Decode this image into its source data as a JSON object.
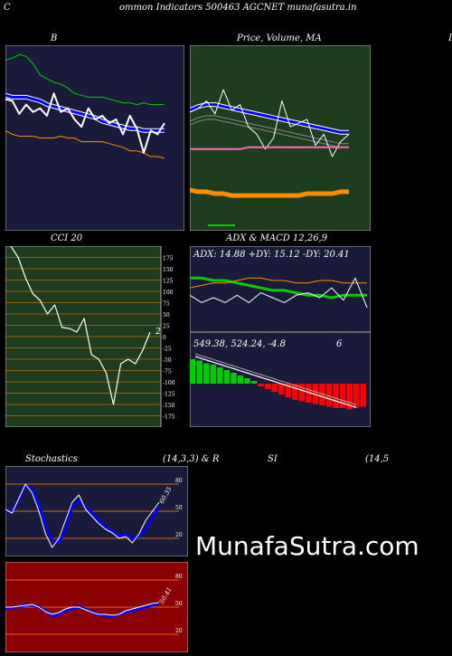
{
  "header": {
    "title": "ommon  Indicators 500463 AGCNET munafasutra.in",
    "left_char": "C",
    "right_char": "I"
  },
  "watermark": "MunafaSutra.com",
  "colors": {
    "navy": "#1a1a3a",
    "green_bg": "#1e3c1e",
    "red_bg": "#8b0000",
    "orange": "#ff8c00",
    "blue": "#0000ff",
    "white": "#ffffff",
    "green": "#00cc00",
    "pink": "#ff69b4",
    "red": "#ff0000"
  },
  "chart_data": [
    {
      "id": "bollinger",
      "type": "line",
      "title": "B",
      "series": [
        {
          "values": [
            92,
            93,
            95,
            94,
            90,
            84,
            82,
            80,
            79,
            77,
            74,
            73,
            72,
            72,
            72,
            71,
            70,
            69,
            69,
            68,
            69,
            68,
            68,
            68
          ]
        },
        {
          "values": [
            73,
            72,
            72,
            72,
            71,
            70,
            68,
            67,
            66,
            65,
            64,
            63,
            62,
            61,
            59,
            58,
            57,
            56,
            55,
            55,
            54,
            54,
            54,
            54
          ]
        },
        {
          "values": [
            54,
            52,
            51,
            51,
            51,
            50,
            50,
            50,
            51,
            50,
            50,
            48,
            48,
            48,
            48,
            47,
            46,
            45,
            43,
            43,
            42,
            40,
            40,
            39
          ]
        },
        {
          "values": [
            71,
            70,
            63,
            68,
            64,
            66,
            62,
            74,
            64,
            66,
            60,
            56,
            66,
            60,
            62,
            58,
            60,
            52,
            62,
            55,
            42,
            54,
            52,
            58
          ]
        }
      ]
    },
    {
      "id": "price_ma",
      "type": "line",
      "title": "Price,  Volume,  MA",
      "series": [
        {
          "values": [
            65,
            67,
            68,
            68,
            67,
            66,
            65,
            64,
            63,
            62,
            61,
            60,
            59,
            58,
            57,
            56,
            55,
            54,
            53,
            53
          ]
        },
        {
          "values": [
            64,
            66,
            70,
            63,
            76,
            65,
            68,
            56,
            52,
            44,
            50,
            70,
            56,
            58,
            60,
            46,
            52,
            40,
            48,
            52
          ]
        },
        {
          "values": [
            44,
            44,
            44,
            44,
            44,
            44,
            44,
            45,
            45,
            45,
            45,
            45,
            45,
            45,
            45,
            45,
            45,
            45,
            45,
            45
          ]
        },
        {
          "values": [
            22,
            21,
            21,
            20,
            20,
            19,
            19,
            19,
            19,
            19,
            19,
            19,
            19,
            19,
            20,
            20,
            20,
            20,
            21,
            21
          ]
        }
      ]
    },
    {
      "id": "cci",
      "type": "line",
      "title": "CCI 20",
      "yticks": [
        175,
        150,
        125,
        100,
        75,
        50,
        25,
        0,
        -25,
        -50,
        -75,
        -100,
        -125,
        -150,
        -175
      ],
      "last_label": "2",
      "values": [
        200,
        175,
        130,
        95,
        80,
        50,
        70,
        20,
        18,
        10,
        40,
        -40,
        -50,
        -80,
        -150,
        -60,
        -50,
        -60,
        -30,
        10
      ]
    },
    {
      "id": "adx",
      "type": "line",
      "title": "ADX  & MACD 12,26,9",
      "subtitle": "ADX: 14.88  +DY: 15.12  -DY: 20.41",
      "series": [
        {
          "values": [
            22,
            22,
            21,
            21,
            20,
            19,
            18,
            17,
            17,
            16,
            15,
            15,
            14,
            15,
            15,
            15
          ]
        },
        {
          "values": [
            18,
            19,
            20,
            20,
            21,
            22,
            22,
            21,
            21,
            20,
            20,
            21,
            21,
            20,
            20,
            20
          ]
        },
        {
          "values": [
            15,
            12,
            14,
            12,
            15,
            12,
            16,
            14,
            12,
            15,
            16,
            14,
            18,
            13,
            22,
            10
          ]
        }
      ]
    },
    {
      "id": "macd",
      "type": "bar",
      "subtitle": "549.38,  524.24,  -4.8",
      "last_label": "6",
      "values": [
        18,
        17,
        15,
        14,
        12,
        10,
        8,
        6,
        4,
        2,
        -2,
        -4,
        -6,
        -8,
        -10,
        -12,
        -13,
        -14,
        -15,
        -16,
        -17,
        -18,
        -18,
        -19,
        -18,
        -17
      ]
    },
    {
      "id": "stochastics",
      "type": "line",
      "title": "Stochastics",
      "params": "(14,3,3) & R",
      "yticks": [
        80,
        50,
        20
      ],
      "last_label": "60.35",
      "series": [
        {
          "values": [
            50,
            50,
            62,
            78,
            75,
            58,
            35,
            18,
            15,
            30,
            55,
            62,
            55,
            48,
            40,
            32,
            28,
            22,
            25,
            20,
            22,
            30,
            42,
            55
          ]
        },
        {
          "values": [
            52,
            48,
            64,
            80,
            70,
            50,
            25,
            10,
            20,
            40,
            60,
            68,
            52,
            44,
            36,
            30,
            26,
            20,
            22,
            15,
            25,
            40,
            50,
            60
          ]
        }
      ]
    },
    {
      "id": "rsi",
      "type": "line",
      "title": "SI",
      "params": "(14,5",
      "yticks": [
        80,
        50,
        20
      ],
      "last_label": "50.41",
      "series": [
        {
          "values": [
            48,
            50,
            50,
            52,
            52,
            50,
            46,
            40,
            42,
            46,
            48,
            50,
            48,
            44,
            42,
            40,
            40,
            42,
            44,
            46,
            48,
            50,
            52,
            54
          ]
        },
        {
          "values": [
            50,
            50,
            51,
            52,
            53,
            50,
            45,
            42,
            44,
            48,
            50,
            50,
            47,
            44,
            42,
            42,
            41,
            42,
            46,
            48,
            50,
            52,
            54,
            55
          ]
        }
      ]
    }
  ]
}
